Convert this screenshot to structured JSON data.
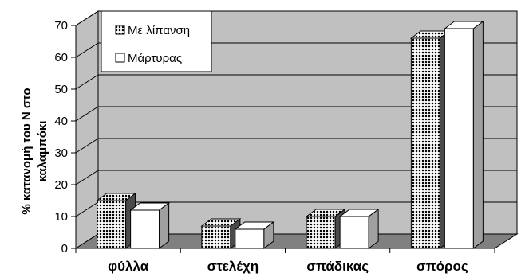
{
  "chart_data": {
    "type": "bar",
    "categories": [
      "φύλλα",
      "στελέχη",
      "σπάδικας",
      "σπόρος"
    ],
    "series": [
      {
        "name": "Με λίπανση",
        "values": [
          15,
          7,
          10,
          66
        ],
        "pattern": "dots"
      },
      {
        "name": "Μάρτυρας",
        "values": [
          12,
          6,
          10,
          69
        ],
        "pattern": "solid"
      }
    ],
    "ylabel_lines": [
      "% κατανομή του Ν στο",
      "καλαμπόκι"
    ],
    "xlabel": "",
    "title": "",
    "ylim": [
      0,
      70
    ],
    "yticks": [
      0,
      10,
      20,
      30,
      40,
      50,
      60,
      70
    ],
    "grid": true,
    "legend_position": "top-left",
    "three_d": true,
    "colors": {
      "wall": "#c0c0c0",
      "floor": "#808080",
      "grid": "#000000",
      "bar_fill": "#ffffff",
      "dot": "#000000"
    }
  }
}
